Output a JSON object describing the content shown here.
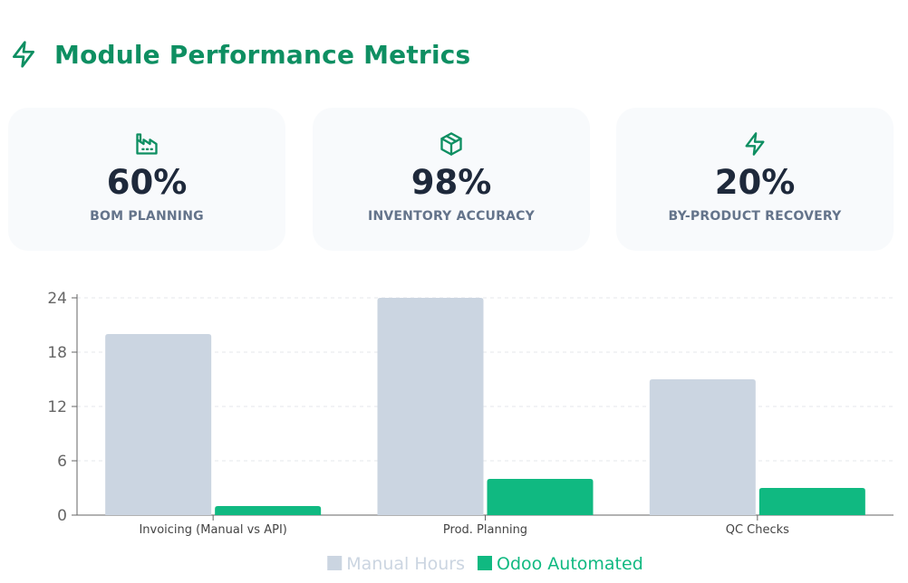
{
  "header": {
    "title": "Module Performance Metrics",
    "icon": "lightning-icon"
  },
  "metrics": [
    {
      "icon": "factory-icon",
      "value": "60%",
      "label": "BOM PLANNING"
    },
    {
      "icon": "package-icon",
      "value": "98%",
      "label": "INVENTORY ACCURACY"
    },
    {
      "icon": "lightning-icon",
      "value": "20%",
      "label": "BY-PRODUCT RECOVERY"
    }
  ],
  "colors": {
    "accent": "#0e8f62",
    "manual": "#cbd5e1",
    "automated": "#10b981"
  },
  "chart_data": {
    "type": "bar",
    "title": "",
    "xlabel": "",
    "ylabel": "",
    "categories": [
      "Invoicing (Manual vs API)",
      "Prod. Planning",
      "QC Checks"
    ],
    "series": [
      {
        "name": "Manual Hours",
        "values": [
          20,
          24,
          15
        ]
      },
      {
        "name": "Odoo Automated",
        "values": [
          1,
          4,
          3
        ]
      }
    ],
    "ylim": [
      0,
      24
    ],
    "yticks": [
      0,
      6,
      12,
      18,
      24
    ],
    "grid": true,
    "legend": "bottom-center"
  }
}
